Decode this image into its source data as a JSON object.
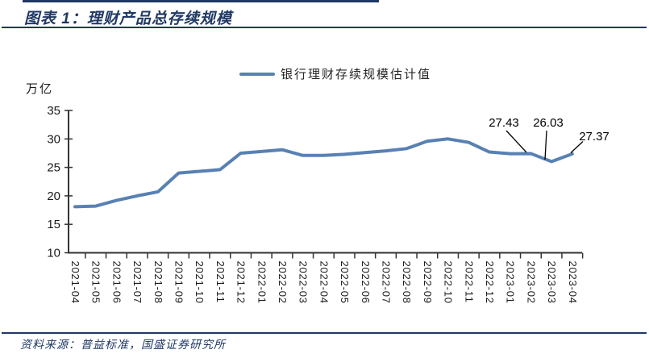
{
  "header": {
    "title": "图表 1：理财产品总存续规模"
  },
  "footer": {
    "source": "资料来源：普益标准，国盛证券研究所"
  },
  "colors": {
    "accent_navy": "#1f3864",
    "line_blue": "#5881b3",
    "axis": "#333333",
    "text": "#1a1a1a"
  },
  "chart_data": {
    "type": "line",
    "title": "图表 1：理财产品总存续规模",
    "legend": "银行理财存续规模估计值",
    "unit_label": "万亿",
    "categories": [
      "2021-04",
      "2021-05",
      "2021-06",
      "2021-07",
      "2021-08",
      "2021-09",
      "2021-10",
      "2021-11",
      "2021-12",
      "2022-01",
      "2022-02",
      "2022-03",
      "2022-04",
      "2022-05",
      "2022-06",
      "2022-07",
      "2022-08",
      "2022-09",
      "2022-10",
      "2022-11",
      "2022-12",
      "2023-01",
      "2023-02",
      "2023-03",
      "2023-04"
    ],
    "values": [
      18.1,
      18.2,
      19.2,
      20.0,
      20.7,
      24.0,
      24.3,
      24.6,
      27.5,
      27.8,
      28.1,
      27.1,
      27.1,
      27.3,
      27.6,
      27.9,
      28.3,
      29.6,
      30.0,
      29.4,
      27.7,
      27.4,
      27.43,
      26.03,
      27.37
    ],
    "ylim": [
      10,
      35
    ],
    "yticks": [
      10,
      15,
      20,
      25,
      30,
      35
    ],
    "line_color": "#5881b3",
    "grid": "off",
    "legend_position": "top-center",
    "annotations": [
      {
        "index": 22,
        "label": "27.43"
      },
      {
        "index": 23,
        "label": "26.03"
      },
      {
        "index": 24,
        "label": "27.37"
      }
    ]
  }
}
